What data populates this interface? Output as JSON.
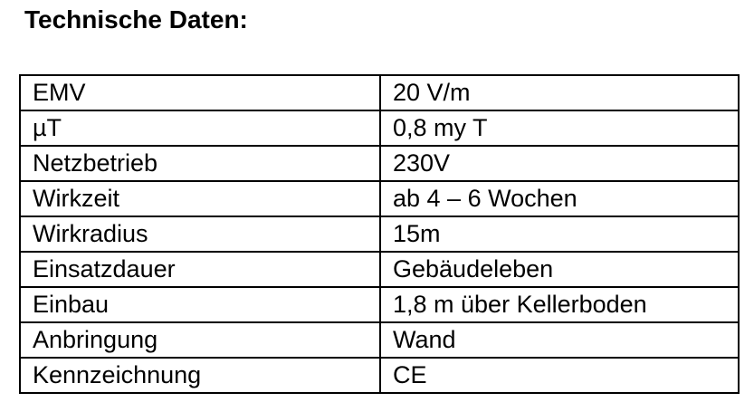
{
  "title": "Technische Daten:",
  "table": {
    "rows": [
      {
        "label": "EMV",
        "value": "20 V/m"
      },
      {
        "label": "µT",
        "value": "0,8 my T"
      },
      {
        "label": "Netzbetrieb",
        "value": "230V"
      },
      {
        "label": "Wirkzeit",
        "value": "ab 4 – 6 Wochen"
      },
      {
        "label": "Wirkradius",
        "value": "15m"
      },
      {
        "label": "Einsatzdauer",
        "value": "Gebäudeleben"
      },
      {
        "label": "Einbau",
        "value": "1,8 m über Kellerboden"
      },
      {
        "label": "Anbringung",
        "value": "Wand"
      },
      {
        "label": "Kennzeichnung",
        "value": "CE"
      }
    ]
  },
  "colors": {
    "text": "#000000",
    "border": "#000000",
    "background": "#ffffff"
  }
}
